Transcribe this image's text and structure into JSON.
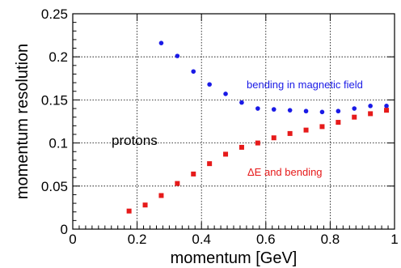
{
  "chart_data": {
    "type": "scatter",
    "xlabel": "momentum [GeV]",
    "ylabel": "momentum resolution",
    "xlim": [
      0,
      1
    ],
    "ylim": [
      0,
      0.25
    ],
    "x_ticks": [
      0,
      0.2,
      0.4,
      0.6,
      0.8,
      1
    ],
    "x_tick_labels": [
      "0",
      "0.2",
      "0.4",
      "0.6",
      "0.8",
      "1"
    ],
    "y_ticks": [
      0,
      0.05,
      0.1,
      0.15,
      0.2,
      0.25
    ],
    "y_tick_labels": [
      "0",
      "0.05",
      "0.1",
      "0.15",
      "0.2",
      "0.25"
    ],
    "grid": true,
    "series": [
      {
        "label_text": "bending in magnetic field",
        "color": "#1a1ae6",
        "marker": "circle",
        "x": [
          0.275,
          0.325,
          0.375,
          0.425,
          0.475,
          0.525,
          0.575,
          0.625,
          0.675,
          0.725,
          0.775,
          0.825,
          0.875,
          0.925,
          0.975
        ],
        "y": [
          0.216,
          0.201,
          0.183,
          0.168,
          0.157,
          0.147,
          0.14,
          0.139,
          0.138,
          0.137,
          0.136,
          0.137,
          0.14,
          0.143,
          0.143
        ]
      },
      {
        "label_text": "ΔE and bending",
        "color": "#e61a1a",
        "marker": "square",
        "x": [
          0.175,
          0.225,
          0.275,
          0.325,
          0.375,
          0.425,
          0.475,
          0.525,
          0.575,
          0.625,
          0.675,
          0.725,
          0.775,
          0.825,
          0.875,
          0.925,
          0.975
        ],
        "y": [
          0.021,
          0.028,
          0.039,
          0.053,
          0.064,
          0.076,
          0.087,
          0.095,
          0.1,
          0.106,
          0.111,
          0.115,
          0.119,
          0.124,
          0.13,
          0.134,
          0.138
        ]
      }
    ],
    "annotations": {
      "particle": "protons",
      "blue_label": "bending in magnetic field",
      "red_label": "ΔE and bending"
    }
  }
}
